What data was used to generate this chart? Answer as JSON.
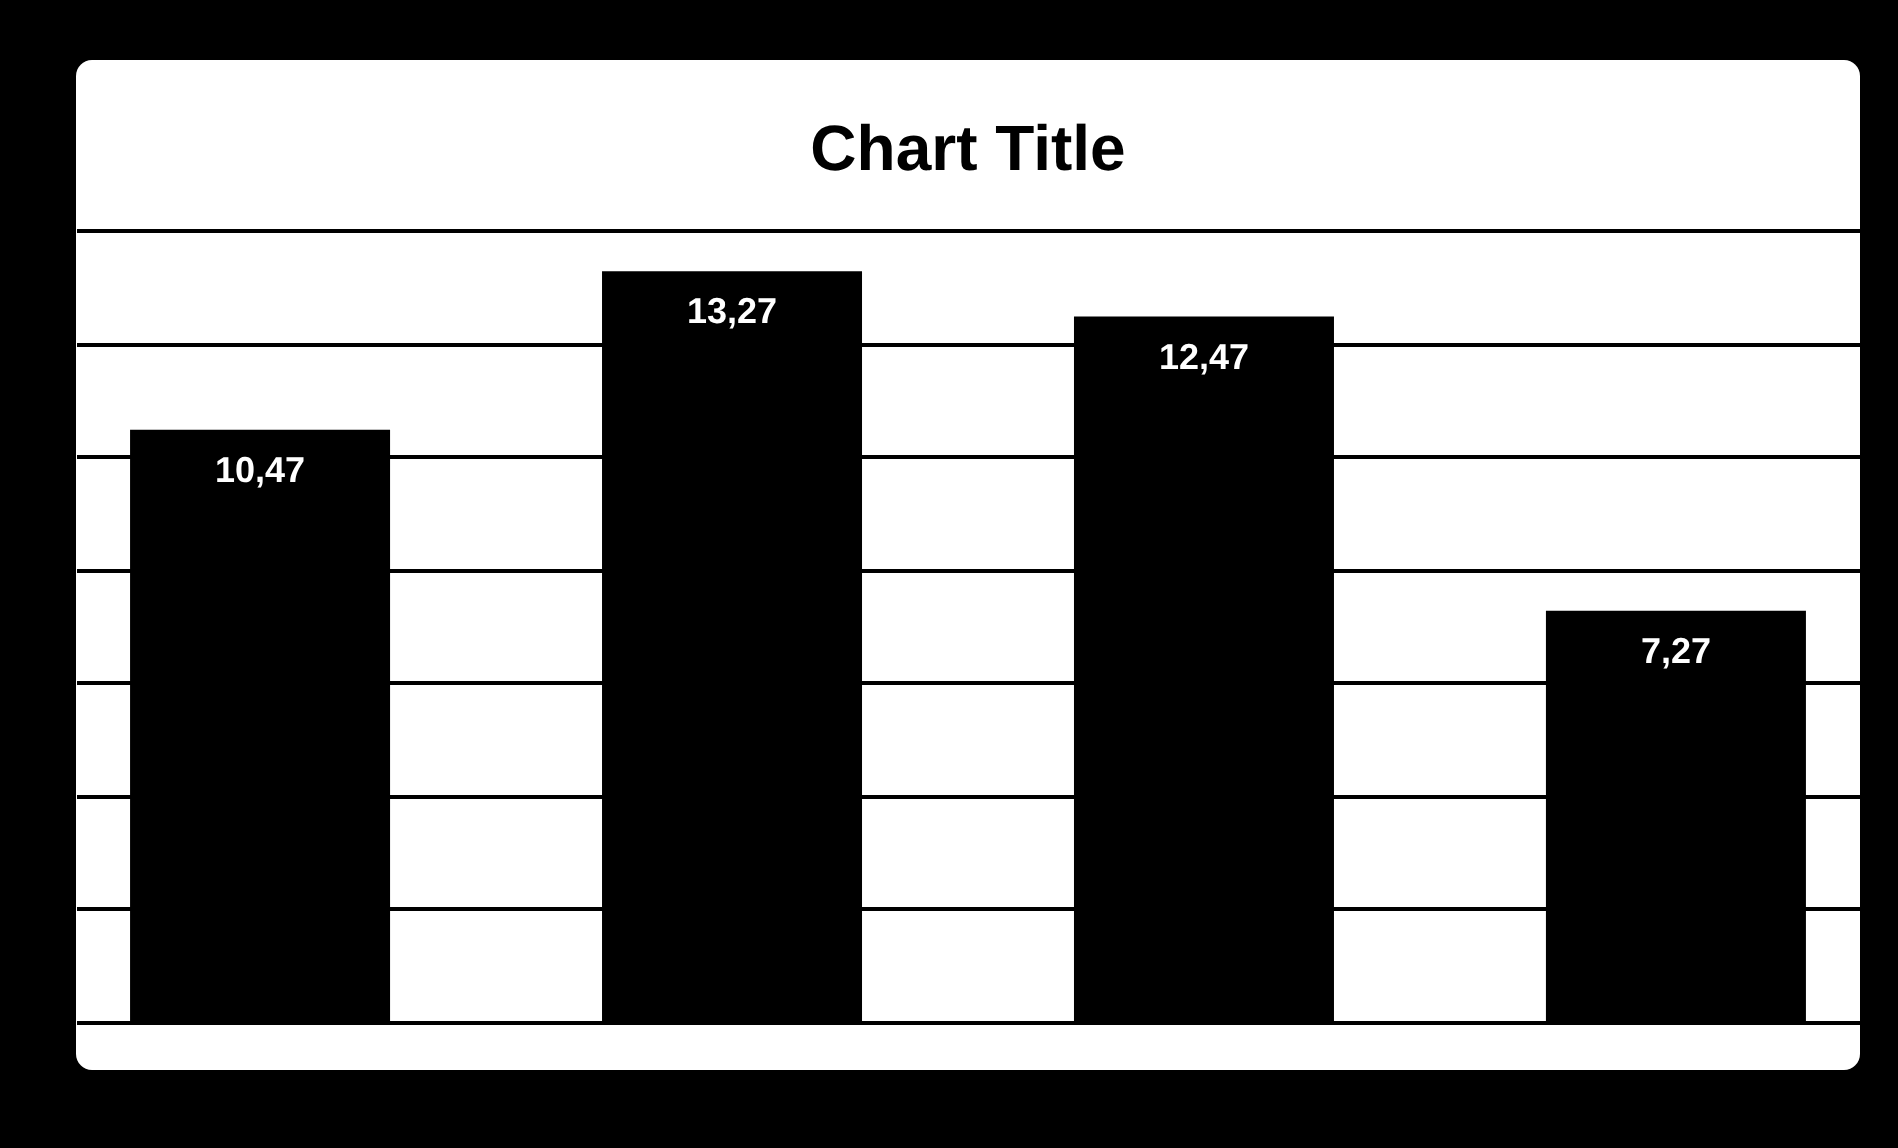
{
  "chart_data": {
    "type": "bar",
    "title": "Chart Title",
    "categories": [
      null,
      null,
      null,
      null
    ],
    "values": [
      10.47,
      13.27,
      12.47,
      7.27
    ],
    "value_labels": [
      "10,47",
      "13,27",
      "12,47",
      "7,27"
    ],
    "color": "#000000",
    "ylim": [
      0,
      14
    ],
    "yticks": [
      {
        "value": 0,
        "label": null
      },
      {
        "value": 2,
        "label": null
      },
      {
        "value": 4,
        "label": null
      },
      {
        "value": 6,
        "label": null
      },
      {
        "value": 8,
        "label": null
      },
      {
        "value": 10,
        "label": null
      },
      {
        "value": 12,
        "label": null
      },
      {
        "value": 14,
        "label": null
      }
    ],
    "grid": "y"
  }
}
